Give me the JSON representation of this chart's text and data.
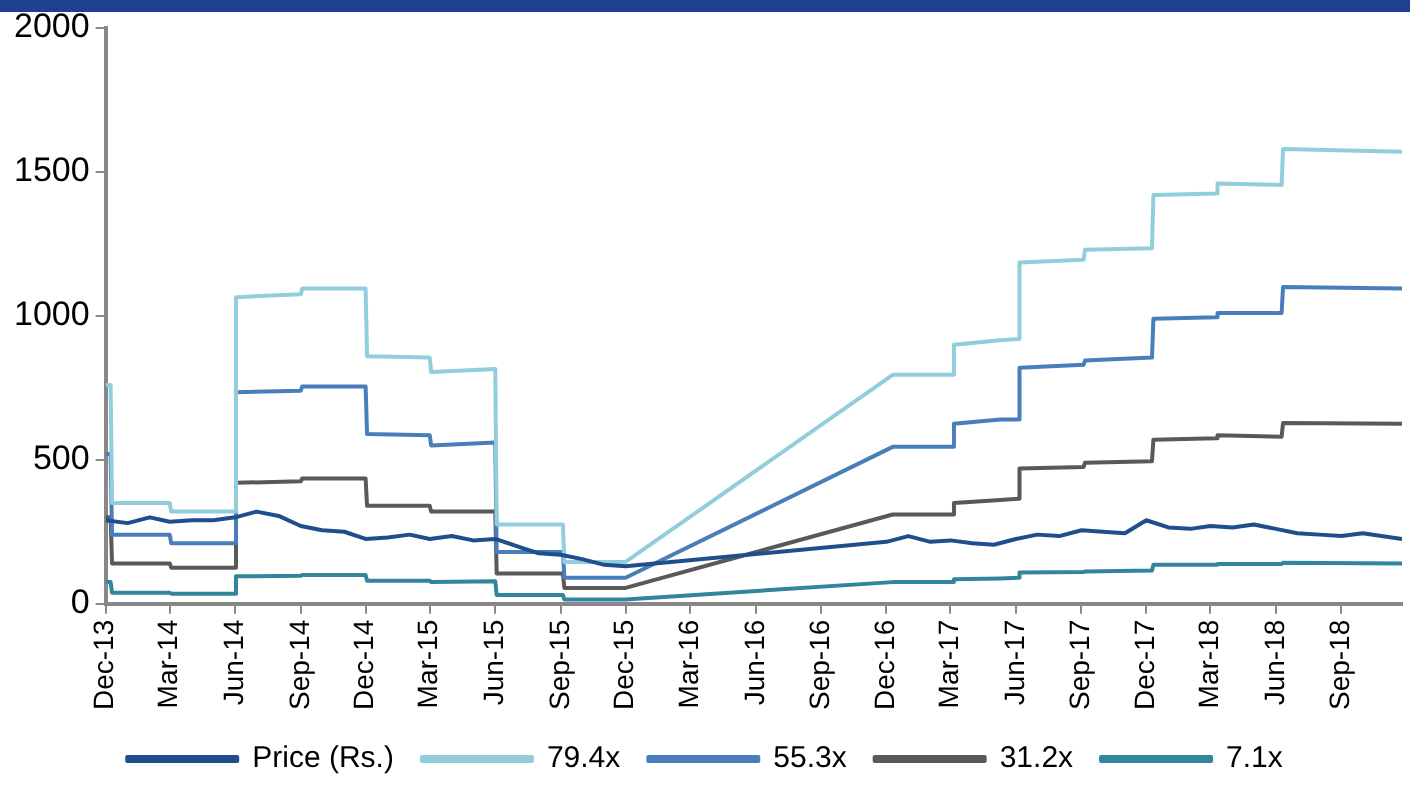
{
  "chart_data": {
    "type": "line",
    "legend": "bottom",
    "grid": false,
    "marker": "none",
    "line_style": "solid",
    "xlim": [
      "2013-12-01",
      "2018-11-25"
    ],
    "xticks": [
      {
        "value": "2013-12-01",
        "label": "Dec-13"
      },
      {
        "value": "2014-03-01",
        "label": "Mar-14"
      },
      {
        "value": "2014-06-01",
        "label": "Jun-14"
      },
      {
        "value": "2014-09-01",
        "label": "Sep-14"
      },
      {
        "value": "2014-12-01",
        "label": "Dec-14"
      },
      {
        "value": "2015-03-01",
        "label": "Mar-15"
      },
      {
        "value": "2015-06-01",
        "label": "Jun-15"
      },
      {
        "value": "2015-09-01",
        "label": "Sep-15"
      },
      {
        "value": "2015-12-01",
        "label": "Dec-15"
      },
      {
        "value": "2016-03-01",
        "label": "Mar-16"
      },
      {
        "value": "2016-06-01",
        "label": "Jun-16"
      },
      {
        "value": "2016-09-01",
        "label": "Sep-16"
      },
      {
        "value": "2016-12-01",
        "label": "Dec-16"
      },
      {
        "value": "2017-03-01",
        "label": "Mar-17"
      },
      {
        "value": "2017-06-01",
        "label": "Jun-17"
      },
      {
        "value": "2017-09-01",
        "label": "Sep-17"
      },
      {
        "value": "2017-12-01",
        "label": "Dec-17"
      },
      {
        "value": "2018-03-01",
        "label": "Mar-18"
      },
      {
        "value": "2018-06-01",
        "label": "Jun-18"
      },
      {
        "value": "2018-09-01",
        "label": "Sep-18"
      }
    ],
    "ylim": [
      0,
      2000
    ],
    "yticks": [
      0,
      500,
      1000,
      1500,
      2000
    ],
    "series": [
      {
        "name": "Price (Rs.)",
        "color": "#1f4e8c",
        "x": [
          "2013-12-01",
          "2014-01-01",
          "2014-02-01",
          "2014-03-01",
          "2014-04-01",
          "2014-05-01",
          "2014-06-01",
          "2014-07-01",
          "2014-08-01",
          "2014-09-01",
          "2014-10-01",
          "2014-11-01",
          "2014-12-01",
          "2015-01-01",
          "2015-02-01",
          "2015-03-01",
          "2015-04-01",
          "2015-05-01",
          "2015-06-01",
          "2015-07-01",
          "2015-08-01",
          "2015-09-01",
          "2015-10-01",
          "2015-11-01",
          "2015-12-01",
          "2016-12-01",
          "2017-01-01",
          "2017-02-01",
          "2017-03-01",
          "2017-04-01",
          "2017-05-01",
          "2017-06-01",
          "2017-07-01",
          "2017-08-01",
          "2017-09-01",
          "2017-10-01",
          "2017-11-01",
          "2017-12-01",
          "2018-01-01",
          "2018-02-01",
          "2018-03-01",
          "2018-04-01",
          "2018-05-01",
          "2018-06-01",
          "2018-07-01",
          "2018-08-01",
          "2018-09-01",
          "2018-10-01",
          "2018-11-25"
        ],
        "values": [
          290,
          280,
          300,
          285,
          290,
          290,
          300,
          320,
          305,
          270,
          255,
          250,
          225,
          230,
          240,
          225,
          235,
          220,
          225,
          200,
          175,
          170,
          155,
          135,
          130,
          215,
          235,
          215,
          220,
          210,
          205,
          225,
          240,
          235,
          255,
          250,
          245,
          290,
          265,
          260,
          270,
          265,
          275,
          260,
          245,
          240,
          235,
          245,
          225
        ]
      },
      {
        "name": "79.4x",
        "color": "#92cddc",
        "x": [
          "2013-12-01",
          "2013-12-08",
          "2013-12-10",
          "2014-03-01",
          "2014-03-03",
          "2014-05-31",
          "2014-06-02",
          "2014-09-01",
          "2014-09-03",
          "2014-12-01",
          "2014-12-03",
          "2015-03-01",
          "2015-03-03",
          "2015-06-01",
          "2015-06-03",
          "2015-09-04",
          "2015-09-06",
          "2015-12-01",
          "2016-12-10",
          "2017-03-04",
          "2017-03-06",
          "2017-05-10",
          "2017-06-04",
          "2017-06-06",
          "2017-09-04",
          "2017-09-06",
          "2017-12-09",
          "2017-12-11",
          "2018-03-09",
          "2018-03-11",
          "2018-06-09",
          "2018-06-11",
          "2018-11-25"
        ],
        "values": [
          760,
          760,
          350,
          350,
          320,
          320,
          1065,
          1075,
          1095,
          1095,
          860,
          855,
          805,
          815,
          275,
          275,
          145,
          145,
          795,
          795,
          900,
          915,
          920,
          1185,
          1195,
          1230,
          1235,
          1420,
          1425,
          1460,
          1455,
          1580,
          1570
        ]
      },
      {
        "name": "55.3x",
        "color": "#4a7ebb",
        "x": [
          "2013-12-01",
          "2013-12-08",
          "2013-12-10",
          "2014-03-01",
          "2014-03-03",
          "2014-05-31",
          "2014-06-02",
          "2014-09-01",
          "2014-09-03",
          "2014-12-01",
          "2014-12-03",
          "2015-03-01",
          "2015-03-03",
          "2015-06-01",
          "2015-06-03",
          "2015-09-04",
          "2015-09-06",
          "2015-12-01",
          "2016-12-10",
          "2017-03-04",
          "2017-03-06",
          "2017-05-10",
          "2017-06-04",
          "2017-06-06",
          "2017-09-04",
          "2017-09-06",
          "2017-12-09",
          "2017-12-11",
          "2018-03-09",
          "2018-03-11",
          "2018-06-09",
          "2018-06-11",
          "2018-11-25"
        ],
        "values": [
          520,
          520,
          240,
          240,
          210,
          210,
          735,
          740,
          755,
          755,
          590,
          585,
          550,
          560,
          180,
          180,
          90,
          90,
          545,
          545,
          625,
          640,
          640,
          820,
          830,
          845,
          855,
          990,
          995,
          1010,
          1010,
          1100,
          1095
        ]
      },
      {
        "name": "31.2x",
        "color": "#595959",
        "x": [
          "2013-12-01",
          "2013-12-08",
          "2013-12-10",
          "2014-03-01",
          "2014-03-03",
          "2014-05-31",
          "2014-06-02",
          "2014-09-01",
          "2014-09-03",
          "2014-12-01",
          "2014-12-03",
          "2015-03-01",
          "2015-03-03",
          "2015-06-01",
          "2015-06-03",
          "2015-09-04",
          "2015-09-06",
          "2015-12-01",
          "2016-12-10",
          "2017-03-04",
          "2017-03-06",
          "2017-05-10",
          "2017-06-04",
          "2017-06-06",
          "2017-09-04",
          "2017-09-06",
          "2017-12-09",
          "2017-12-11",
          "2018-03-09",
          "2018-03-11",
          "2018-06-09",
          "2018-06-11",
          "2018-11-25"
        ],
        "values": [
          300,
          300,
          140,
          140,
          125,
          125,
          420,
          425,
          435,
          435,
          340,
          340,
          320,
          320,
          105,
          105,
          55,
          55,
          310,
          310,
          350,
          360,
          365,
          470,
          475,
          490,
          495,
          570,
          575,
          585,
          580,
          628,
          625
        ]
      },
      {
        "name": "7.1x",
        "color": "#31859c",
        "x": [
          "2013-12-01",
          "2013-12-08",
          "2013-12-10",
          "2014-03-01",
          "2014-03-03",
          "2014-05-31",
          "2014-06-02",
          "2014-09-01",
          "2014-09-03",
          "2014-12-01",
          "2014-12-03",
          "2015-03-01",
          "2015-03-03",
          "2015-06-01",
          "2015-06-03",
          "2015-09-04",
          "2015-09-06",
          "2015-12-01",
          "2016-12-10",
          "2017-03-04",
          "2017-03-06",
          "2017-05-10",
          "2017-06-04",
          "2017-06-06",
          "2017-09-04",
          "2017-09-06",
          "2017-12-09",
          "2017-12-11",
          "2018-03-09",
          "2018-03-11",
          "2018-06-09",
          "2018-06-11",
          "2018-11-25"
        ],
        "values": [
          75,
          75,
          38,
          38,
          35,
          35,
          95,
          97,
          100,
          100,
          80,
          80,
          75,
          78,
          30,
          30,
          15,
          15,
          75,
          75,
          85,
          88,
          90,
          108,
          110,
          112,
          115,
          135,
          135,
          138,
          138,
          142,
          140
        ]
      }
    ]
  }
}
